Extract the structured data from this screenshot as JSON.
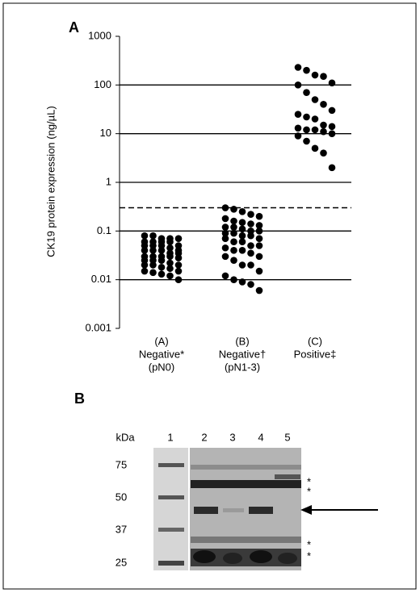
{
  "chart_data": {
    "type": "strip",
    "panel_label": "A",
    "y_label": "CK19 protein expression  (ng/µL)",
    "categories": [
      [
        "(A)",
        "Negative*",
        "(pN0)"
      ],
      [
        "(B)",
        "Negative†",
        "(pN1-3)"
      ],
      [
        "(C)",
        "Positive‡"
      ]
    ],
    "series": [
      {
        "color": "#000000",
        "values": [
          0.08,
          0.08,
          0.07,
          0.07,
          0.07,
          0.06,
          0.06,
          0.06,
          0.06,
          0.05,
          0.05,
          0.05,
          0.05,
          0.045,
          0.04,
          0.04,
          0.04,
          0.04,
          0.035,
          0.035,
          0.03,
          0.03,
          0.03,
          0.03,
          0.028,
          0.025,
          0.025,
          0.025,
          0.022,
          0.02,
          0.02,
          0.02,
          0.018,
          0.017,
          0.015,
          0.015,
          0.014,
          0.013,
          0.012,
          0.01
        ]
      },
      {
        "color": "#000000",
        "values": [
          0.3,
          0.28,
          0.25,
          0.22,
          0.2,
          0.18,
          0.16,
          0.15,
          0.14,
          0.13,
          0.12,
          0.12,
          0.11,
          0.1,
          0.1,
          0.09,
          0.09,
          0.08,
          0.08,
          0.07,
          0.07,
          0.06,
          0.06,
          0.05,
          0.05,
          0.045,
          0.04,
          0.04,
          0.035,
          0.03,
          0.03,
          0.025,
          0.02,
          0.02,
          0.015,
          0.012,
          0.01,
          0.009,
          0.008,
          0.006
        ]
      },
      {
        "color": "#000000",
        "values": [
          230,
          200,
          160,
          150,
          110,
          100,
          70,
          50,
          40,
          30,
          25,
          22,
          20,
          15,
          14,
          13,
          12,
          12,
          11,
          10,
          9,
          7,
          5,
          4,
          2
        ]
      }
    ],
    "log_y": true,
    "ylim": [
      0.001,
      1000
    ],
    "yticks": [
      0.001,
      0.01,
      0.1,
      1,
      10,
      100,
      1000
    ],
    "grid": true,
    "threshold": 0.3
  },
  "blot": {
    "panel_label": "B",
    "unit": "kDa",
    "lanes": [
      "1",
      "2",
      "3",
      "4",
      "5"
    ],
    "markers": [
      "75",
      "50",
      "37",
      "25"
    ],
    "annotations": [
      "*",
      "*",
      "*",
      "*"
    ]
  }
}
